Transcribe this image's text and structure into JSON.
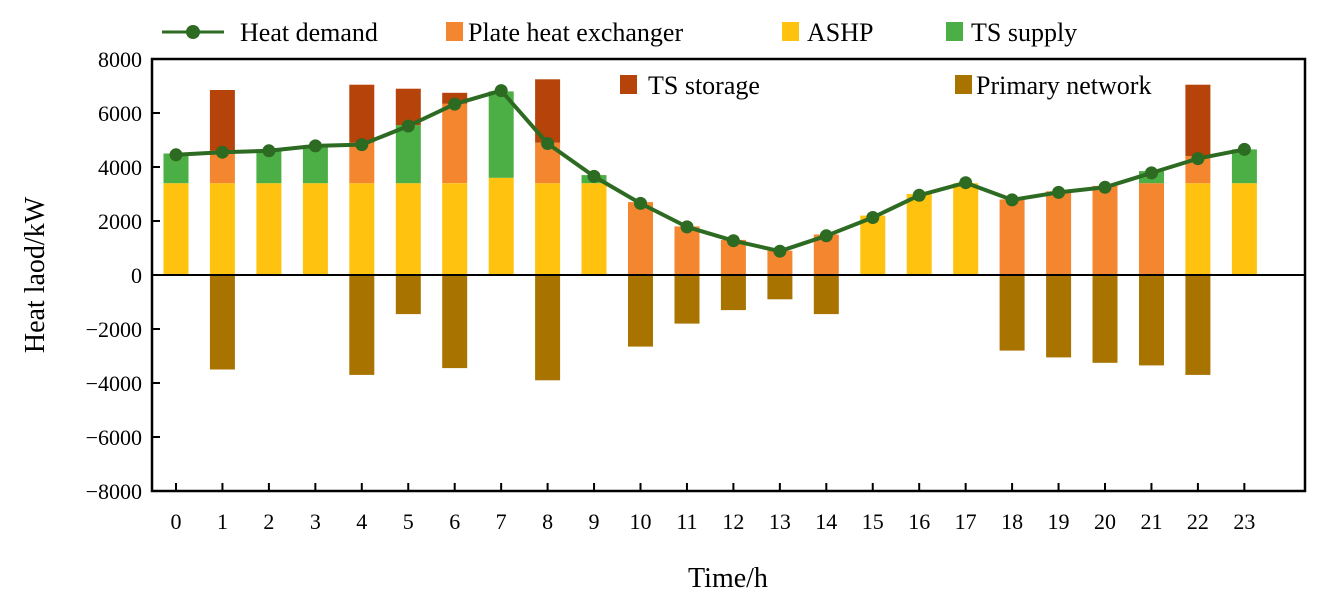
{
  "chart_data": {
    "type": "bar",
    "stacked": true,
    "xlabel": "Time/h",
    "ylabel": "Heat laod/kW",
    "ylim": [
      -8000,
      8000
    ],
    "yticks": [
      8000,
      6000,
      4000,
      2000,
      0,
      -2000,
      -4000,
      -6000,
      -8000
    ],
    "categories": [
      "0",
      "1",
      "2",
      "3",
      "4",
      "5",
      "6",
      "7",
      "8",
      "9",
      "10",
      "11",
      "12",
      "13",
      "14",
      "15",
      "16",
      "17",
      "18",
      "19",
      "20",
      "21",
      "22",
      "23"
    ],
    "colors": {
      "heat_demand": "#2d6a22",
      "plate": "#f58630",
      "ashp": "#ffc20e",
      "ts_supply": "#4caf45",
      "ts_storage": "#b6440a",
      "primary": "#a97300"
    },
    "legend": {
      "heat_demand": "Heat demand",
      "plate": "Plate heat exchanger",
      "ashp": "ASHP",
      "ts_supply": "TS supply",
      "ts_storage": "TS storage",
      "primary": "Primary network"
    },
    "series": [
      {
        "key": "ashp",
        "name": "ASHP",
        "values": [
          3400,
          3400,
          3400,
          3400,
          3400,
          3400,
          3400,
          3600,
          3400,
          3400,
          0,
          0,
          0,
          0,
          0,
          2200,
          3000,
          3400,
          0,
          0,
          0,
          0,
          3400,
          3400
        ]
      },
      {
        "key": "plate",
        "name": "Plate heat exchanger",
        "values": [
          0,
          1200,
          0,
          0,
          1500,
          0,
          2950,
          0,
          1500,
          0,
          2700,
          1800,
          1300,
          900,
          1500,
          0,
          0,
          0,
          2800,
          3100,
          3300,
          3400,
          1000,
          0
        ]
      },
      {
        "key": "ts_supply",
        "name": "TS supply",
        "values": [
          1100,
          0,
          1250,
          1400,
          0,
          2150,
          0,
          3200,
          0,
          300,
          0,
          0,
          0,
          0,
          0,
          0,
          0,
          0,
          0,
          0,
          0,
          450,
          0,
          1250
        ]
      },
      {
        "key": "ts_storage",
        "name": "TS storage",
        "values": [
          0,
          2250,
          0,
          0,
          2150,
          1350,
          400,
          0,
          2350,
          0,
          0,
          0,
          0,
          0,
          0,
          0,
          0,
          0,
          0,
          0,
          0,
          0,
          2650,
          0
        ]
      },
      {
        "key": "primary",
        "name": "Primary network",
        "values": [
          0,
          -3500,
          0,
          0,
          -3700,
          -1450,
          -3450,
          0,
          -3900,
          0,
          -2650,
          -1800,
          -1300,
          -900,
          -1450,
          0,
          0,
          0,
          -2800,
          -3050,
          -3250,
          -3350,
          -3700,
          0
        ]
      },
      {
        "key": "heat_demand",
        "name": "Heat demand",
        "type": "line",
        "values": [
          4450,
          4550,
          4600,
          4780,
          4830,
          5520,
          6330,
          6830,
          4870,
          3650,
          2650,
          1780,
          1270,
          880,
          1450,
          2130,
          2950,
          3420,
          2780,
          3060,
          3250,
          3780,
          4310,
          4650
        ]
      }
    ]
  }
}
